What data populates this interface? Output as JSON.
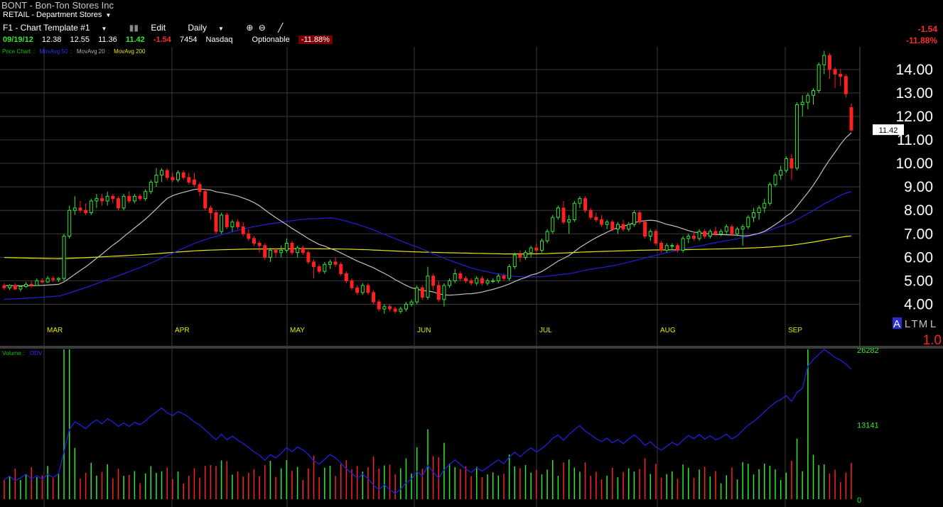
{
  "header": {
    "ticker": "BONT",
    "company": "Bon-Ton Stores Inc",
    "industry": "RETAIL - Department Stores",
    "template": "F1 - Chart Template #1",
    "edit_label": "Edit",
    "period_label": "Daily"
  },
  "quote": {
    "date": "09/19/12",
    "open": "12.38",
    "high": "12.55",
    "low": "11.36",
    "close": "11.42",
    "change": "-1.54",
    "volume": "7454",
    "exchange": "Nasdaq",
    "optionable": "Optionable",
    "pct_change": "-11.88%"
  },
  "right_change": {
    "change": "-1.54",
    "pct": "-11.88%"
  },
  "legend": {
    "price_chart": "Price Chart",
    "ma50": "MovAvg 50",
    "ma20": "MovAvg 20",
    "ma200": "MovAvg 200",
    "volume": "Volume",
    "odv": "ODV"
  },
  "colors": {
    "up": "#31e831",
    "down": "#ff2020",
    "ma20": "#c0c0c0",
    "ma50": "#2020e0",
    "ma200": "#e6e600",
    "grid": "#3a3a3a",
    "bg": "#000000"
  },
  "scale_labels": {
    "a": "A",
    "l": "L",
    "t": "T",
    "m": "M",
    "l2": "L",
    "factor": "1.0"
  },
  "chart_data": {
    "type": "candlestick",
    "price_axis": {
      "ticks": [
        "14.00",
        "13.00",
        "12.00",
        "11.00",
        "10.00",
        "9.00",
        "8.00",
        "7.00",
        "6.00",
        "5.00",
        "4.00"
      ],
      "range": [
        3.5,
        14.6
      ]
    },
    "last_price_label": "11.42",
    "month_labels": [
      "MAR",
      "APR",
      "MAY",
      "JUN",
      "JUL",
      "AUG",
      "SEP"
    ],
    "volume_axis": {
      "ticks": [
        "26282",
        "13141",
        "0"
      ],
      "range": [
        0,
        26282
      ]
    },
    "candles": [
      [
        4.8,
        4.9,
        4.6,
        4.7
      ],
      [
        4.7,
        4.85,
        4.6,
        4.8
      ],
      [
        4.8,
        4.9,
        4.6,
        4.65
      ],
      [
        4.65,
        4.8,
        4.55,
        4.75
      ],
      [
        4.75,
        4.95,
        4.7,
        4.85
      ],
      [
        4.85,
        5.0,
        4.7,
        4.8
      ],
      [
        4.8,
        5.1,
        4.8,
        5.0
      ],
      [
        5.0,
        5.1,
        4.9,
        4.95
      ],
      [
        4.95,
        5.2,
        4.9,
        5.1
      ],
      [
        5.1,
        5.2,
        4.95,
        5.05
      ],
      [
        5.05,
        5.15,
        4.95,
        5.1
      ],
      [
        5.1,
        7.0,
        5.0,
        6.9
      ],
      [
        6.9,
        8.2,
        6.8,
        8.0
      ],
      [
        8.0,
        8.6,
        7.8,
        8.1
      ],
      [
        8.1,
        8.4,
        7.9,
        8.0
      ],
      [
        8.0,
        8.3,
        7.8,
        7.9
      ],
      [
        7.9,
        8.5,
        7.8,
        8.4
      ],
      [
        8.4,
        8.7,
        8.1,
        8.5
      ],
      [
        8.5,
        8.7,
        8.2,
        8.4
      ],
      [
        8.4,
        8.8,
        8.2,
        8.6
      ],
      [
        8.6,
        8.7,
        8.3,
        8.5
      ],
      [
        8.5,
        8.6,
        8.0,
        8.1
      ],
      [
        8.1,
        8.7,
        8.0,
        8.6
      ],
      [
        8.6,
        8.8,
        8.3,
        8.4
      ],
      [
        8.4,
        8.7,
        8.3,
        8.6
      ],
      [
        8.6,
        8.7,
        8.4,
        8.5
      ],
      [
        8.5,
        8.9,
        8.4,
        8.8
      ],
      [
        8.8,
        9.3,
        8.7,
        9.2
      ],
      [
        9.2,
        9.8,
        9.0,
        9.5
      ],
      [
        9.5,
        9.8,
        9.2,
        9.7
      ],
      [
        9.7,
        9.8,
        9.3,
        9.4
      ],
      [
        9.4,
        9.6,
        9.2,
        9.3
      ],
      [
        9.3,
        9.7,
        9.2,
        9.6
      ],
      [
        9.6,
        9.7,
        9.3,
        9.4
      ],
      [
        9.4,
        9.6,
        9.1,
        9.2
      ],
      [
        9.3,
        9.6,
        9.0,
        9.1
      ],
      [
        9.1,
        9.2,
        8.6,
        8.8
      ],
      [
        8.8,
        8.9,
        8.0,
        8.1
      ],
      [
        8.1,
        8.2,
        7.6,
        7.9
      ],
      [
        7.9,
        8.0,
        7.0,
        7.1
      ],
      [
        7.1,
        7.9,
        7.0,
        7.8
      ],
      [
        7.8,
        7.9,
        7.2,
        7.3
      ],
      [
        7.3,
        7.6,
        7.1,
        7.5
      ],
      [
        7.5,
        7.6,
        7.2,
        7.3
      ],
      [
        7.3,
        7.5,
        6.9,
        7.0
      ],
      [
        7.0,
        7.2,
        6.7,
        6.8
      ],
      [
        6.8,
        6.9,
        6.5,
        6.6
      ],
      [
        6.6,
        6.7,
        6.2,
        6.5
      ],
      [
        6.5,
        6.6,
        5.9,
        6.0
      ],
      [
        6.0,
        6.4,
        5.8,
        6.3
      ],
      [
        6.3,
        6.4,
        6.0,
        6.2
      ],
      [
        6.2,
        6.5,
        6.0,
        6.3
      ],
      [
        6.3,
        6.8,
        6.2,
        6.6
      ],
      [
        6.6,
        6.7,
        6.1,
        6.2
      ],
      [
        6.2,
        6.5,
        6.0,
        6.4
      ],
      [
        6.4,
        6.5,
        6.1,
        6.2
      ],
      [
        6.2,
        6.3,
        5.7,
        5.8
      ],
      [
        5.8,
        5.9,
        5.1,
        5.6
      ],
      [
        5.6,
        5.7,
        5.3,
        5.4
      ],
      [
        5.4,
        5.8,
        5.3,
        5.7
      ],
      [
        5.7,
        5.9,
        5.5,
        5.8
      ],
      [
        5.8,
        6.0,
        5.6,
        5.7
      ],
      [
        5.7,
        5.8,
        5.2,
        5.3
      ],
      [
        5.3,
        5.4,
        4.9,
        5.0
      ],
      [
        5.0,
        5.1,
        4.6,
        4.7
      ],
      [
        4.7,
        4.8,
        4.4,
        4.5
      ],
      [
        4.5,
        4.9,
        4.4,
        4.8
      ],
      [
        4.8,
        4.9,
        4.4,
        4.5
      ],
      [
        4.5,
        4.6,
        4.0,
        4.1
      ],
      [
        4.1,
        4.2,
        3.7,
        3.8
      ],
      [
        3.8,
        4.0,
        3.6,
        3.9
      ],
      [
        3.9,
        4.0,
        3.7,
        3.8
      ],
      [
        3.8,
        3.9,
        3.6,
        3.7
      ],
      [
        3.7,
        3.9,
        3.6,
        3.8
      ],
      [
        3.8,
        4.1,
        3.7,
        4.0
      ],
      [
        4.0,
        4.2,
        3.9,
        4.1
      ],
      [
        4.1,
        4.8,
        4.0,
        4.7
      ],
      [
        4.7,
        4.8,
        4.2,
        4.3
      ],
      [
        4.3,
        5.6,
        4.2,
        5.2
      ],
      [
        5.2,
        5.3,
        4.6,
        4.8
      ],
      [
        4.8,
        5.0,
        4.1,
        4.2
      ],
      [
        4.2,
        4.9,
        3.9,
        4.8
      ],
      [
        4.8,
        5.1,
        4.7,
        5.0
      ],
      [
        5.0,
        5.5,
        4.9,
        5.3
      ],
      [
        5.3,
        5.4,
        5.0,
        5.1
      ],
      [
        5.1,
        5.2,
        4.9,
        5.0
      ],
      [
        5.0,
        5.1,
        4.8,
        4.9
      ],
      [
        4.9,
        5.2,
        4.8,
        5.1
      ],
      [
        5.1,
        5.2,
        4.8,
        4.9
      ],
      [
        4.9,
        5.1,
        4.8,
        5.0
      ],
      [
        5.0,
        5.1,
        4.9,
        5.0
      ],
      [
        5.0,
        5.3,
        4.9,
        5.2
      ],
      [
        5.2,
        5.3,
        5.0,
        5.1
      ],
      [
        5.1,
        5.7,
        5.0,
        5.6
      ],
      [
        5.6,
        6.2,
        5.5,
        6.1
      ],
      [
        6.1,
        6.3,
        5.8,
        6.0
      ],
      [
        6.0,
        6.3,
        5.9,
        6.2
      ],
      [
        6.2,
        6.5,
        6.0,
        6.4
      ],
      [
        6.4,
        6.6,
        6.2,
        6.3
      ],
      [
        6.3,
        6.8,
        6.2,
        6.7
      ],
      [
        6.7,
        7.2,
        6.6,
        7.1
      ],
      [
        7.1,
        7.8,
        7.0,
        7.7
      ],
      [
        7.7,
        8.2,
        7.6,
        8.1
      ],
      [
        8.1,
        8.4,
        7.4,
        7.5
      ],
      [
        7.5,
        7.8,
        7.0,
        7.6
      ],
      [
        7.6,
        8.4,
        7.5,
        8.3
      ],
      [
        8.3,
        8.6,
        8.1,
        8.5
      ],
      [
        8.5,
        8.6,
        7.9,
        8.0
      ],
      [
        8.0,
        8.1,
        7.6,
        7.7
      ],
      [
        7.7,
        7.9,
        7.5,
        7.6
      ],
      [
        7.6,
        7.8,
        7.3,
        7.4
      ],
      [
        7.4,
        7.6,
        7.2,
        7.5
      ],
      [
        7.5,
        7.6,
        7.1,
        7.2
      ],
      [
        7.2,
        7.5,
        7.0,
        7.4
      ],
      [
        7.4,
        7.6,
        7.1,
        7.2
      ],
      [
        7.2,
        7.5,
        7.1,
        7.4
      ],
      [
        7.4,
        8.0,
        7.3,
        7.9
      ],
      [
        7.9,
        8.0,
        7.4,
        7.5
      ],
      [
        7.5,
        7.6,
        6.8,
        6.9
      ],
      [
        6.9,
        7.2,
        6.7,
        7.1
      ],
      [
        7.1,
        7.2,
        6.5,
        6.6
      ],
      [
        6.6,
        6.7,
        6.2,
        6.3
      ],
      [
        6.3,
        6.6,
        6.2,
        6.5
      ],
      [
        6.5,
        6.6,
        6.3,
        6.5
      ],
      [
        6.5,
        6.6,
        6.2,
        6.3
      ],
      [
        6.3,
        6.9,
        6.2,
        6.8
      ],
      [
        6.8,
        7.0,
        6.6,
        6.9
      ],
      [
        6.9,
        7.1,
        6.7,
        6.8
      ],
      [
        6.8,
        7.2,
        6.7,
        7.1
      ],
      [
        7.1,
        7.2,
        6.8,
        6.9
      ],
      [
        6.9,
        7.2,
        6.8,
        7.1
      ],
      [
        7.1,
        7.3,
        6.9,
        7.0
      ],
      [
        7.0,
        7.2,
        6.9,
        7.1
      ],
      [
        7.1,
        7.4,
        7.0,
        7.3
      ],
      [
        7.3,
        7.4,
        6.9,
        7.0
      ],
      [
        7.0,
        7.3,
        6.9,
        7.2
      ],
      [
        7.2,
        7.4,
        6.5,
        7.3
      ],
      [
        7.3,
        7.8,
        7.2,
        7.7
      ],
      [
        7.7,
        8.1,
        7.5,
        7.9
      ],
      [
        7.9,
        8.2,
        7.6,
        8.1
      ],
      [
        8.1,
        8.5,
        7.9,
        8.3
      ],
      [
        8.3,
        9.2,
        8.2,
        9.1
      ],
      [
        9.1,
        9.6,
        9.0,
        9.5
      ],
      [
        9.5,
        9.9,
        9.3,
        9.7
      ],
      [
        9.7,
        10.3,
        9.6,
        10.2
      ],
      [
        10.2,
        10.4,
        9.3,
        9.8
      ],
      [
        9.8,
        12.6,
        9.7,
        12.5
      ],
      [
        12.5,
        12.9,
        12.0,
        12.6
      ],
      [
        12.6,
        13.0,
        12.3,
        12.9
      ],
      [
        12.9,
        13.2,
        12.5,
        13.1
      ],
      [
        13.1,
        14.3,
        13.0,
        14.2
      ],
      [
        14.2,
        14.8,
        13.8,
        14.6
      ],
      [
        14.6,
        14.7,
        13.6,
        14.0
      ],
      [
        14.0,
        14.1,
        13.2,
        13.8
      ],
      [
        13.8,
        14.0,
        13.3,
        13.7
      ],
      [
        13.7,
        13.8,
        12.8,
        12.96
      ],
      [
        12.38,
        12.55,
        11.36,
        11.42
      ]
    ]
  }
}
